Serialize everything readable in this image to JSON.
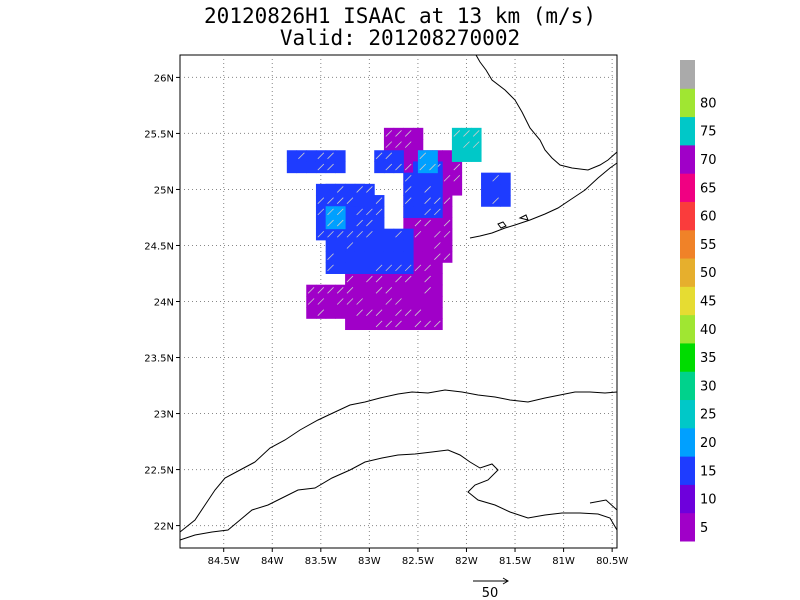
{
  "title_line1": "20120826H1 ISAAC at 13 km (m/s)",
  "title_line2": "Valid: 201208270002",
  "map": {
    "lon_range": [
      -84.95,
      -80.45
    ],
    "lat_range": [
      21.8,
      26.2
    ],
    "x_tick_labels": [
      "84.5W",
      "84W",
      "83.5W",
      "83W",
      "82.5W",
      "82W",
      "81.5W",
      "81W",
      "80.5W"
    ],
    "x_tick_values": [
      -84.5,
      -84,
      -83.5,
      -83,
      -82.5,
      -82,
      -81.5,
      -81,
      -80.5
    ],
    "y_tick_labels": [
      "26N",
      "25.5N",
      "25N",
      "24.5N",
      "24N",
      "23.5N",
      "23N",
      "22.5N",
      "22N"
    ],
    "y_tick_values": [
      26,
      25.5,
      25,
      24.5,
      24,
      23.5,
      23,
      22.5,
      22
    ],
    "grid": "dotted"
  },
  "colorbar": {
    "labels": [
      "5",
      "10",
      "15",
      "20",
      "25",
      "30",
      "35",
      "40",
      "45",
      "50",
      "55",
      "60",
      "65",
      "70",
      "75",
      "80"
    ],
    "colors": [
      "#a000c8",
      "#6e00dc",
      "#1e3cff",
      "#00a0ff",
      "#00c8c8",
      "#00d28c",
      "#00dc00",
      "#a0e632",
      "#e6dc32",
      "#e6af2d",
      "#f08228",
      "#fa3c3c",
      "#f00082",
      "#a000c8",
      "#00c8c8",
      "#a0e632",
      "#aaaaaa"
    ]
  },
  "reference_vector": {
    "label": "50"
  },
  "wind_field": {
    "description_colors": [
      "#a000c8",
      "#1e3cff",
      "#00a0ff",
      "#00c8c8"
    ]
  }
}
